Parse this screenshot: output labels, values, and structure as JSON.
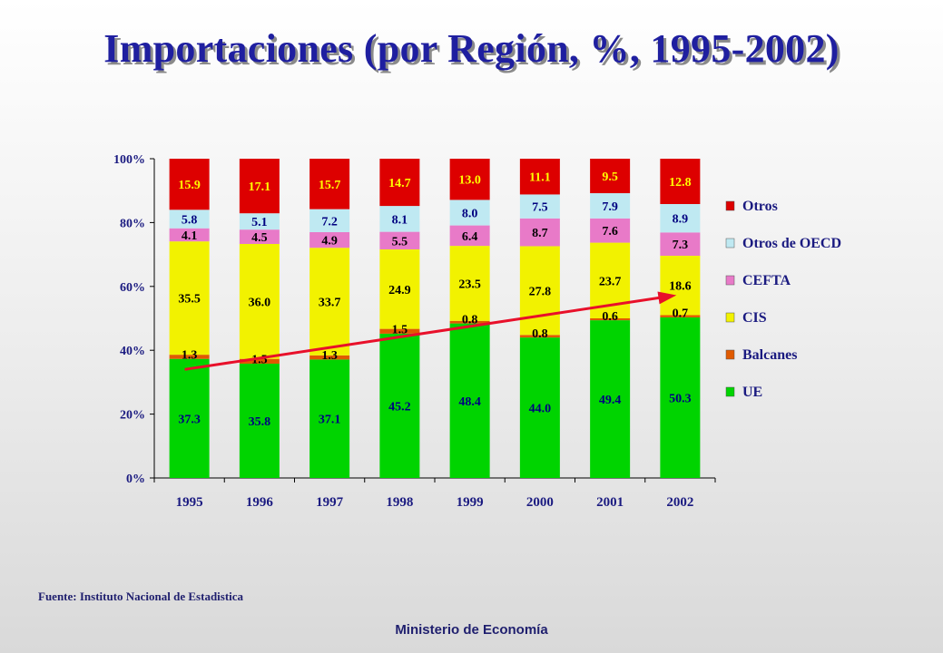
{
  "title": "Importaciones (por Región, %, 1995-2002)",
  "source": "Fuente: Instituto Nacional de Estadistica",
  "footer": "Ministerio de Economía",
  "chart_data": {
    "type": "bar",
    "stacked": true,
    "categories": [
      "1995",
      "1996",
      "1997",
      "1998",
      "1999",
      "2000",
      "2001",
      "2002"
    ],
    "ylim": [
      0,
      100
    ],
    "yticks": [
      "0%",
      "20%",
      "40%",
      "60%",
      "80%",
      "100%"
    ],
    "legend_position": "right",
    "series": [
      {
        "name": "UE",
        "color": "#00d400",
        "values": [
          37.3,
          35.8,
          37.1,
          45.2,
          48.4,
          44.0,
          49.4,
          50.3
        ],
        "label_color": "#000080"
      },
      {
        "name": "Balcanes",
        "color": "#e05a00",
        "values": [
          1.3,
          1.5,
          1.3,
          1.5,
          0.8,
          0.8,
          0.6,
          0.7
        ],
        "label_color": "#000000"
      },
      {
        "name": "CIS",
        "color": "#f2f200",
        "values": [
          35.5,
          36.0,
          33.7,
          24.9,
          23.5,
          27.8,
          23.7,
          18.6
        ],
        "label_color": "#000000"
      },
      {
        "name": "CEFTA",
        "color": "#e87ac8",
        "values": [
          4.1,
          4.5,
          4.9,
          5.5,
          6.4,
          8.7,
          7.6,
          7.3
        ],
        "label_color": "#000000"
      },
      {
        "name": "Otros de OECD",
        "color": "#bfe9f2",
        "values": [
          5.8,
          5.1,
          7.2,
          8.1,
          8.0,
          7.5,
          7.9,
          8.9
        ],
        "label_color": "#000080"
      },
      {
        "name": "Otros",
        "color": "#dd0000",
        "values": [
          15.9,
          17.1,
          15.7,
          14.7,
          13.0,
          11.1,
          9.5,
          12.8
        ],
        "label_color": "#ffff00"
      }
    ],
    "annotations": [
      {
        "type": "arrow",
        "from": {
          "x": "1995",
          "y": 34
        },
        "to": {
          "x": "2002",
          "y": 57
        },
        "color": "#e8102a"
      }
    ]
  }
}
